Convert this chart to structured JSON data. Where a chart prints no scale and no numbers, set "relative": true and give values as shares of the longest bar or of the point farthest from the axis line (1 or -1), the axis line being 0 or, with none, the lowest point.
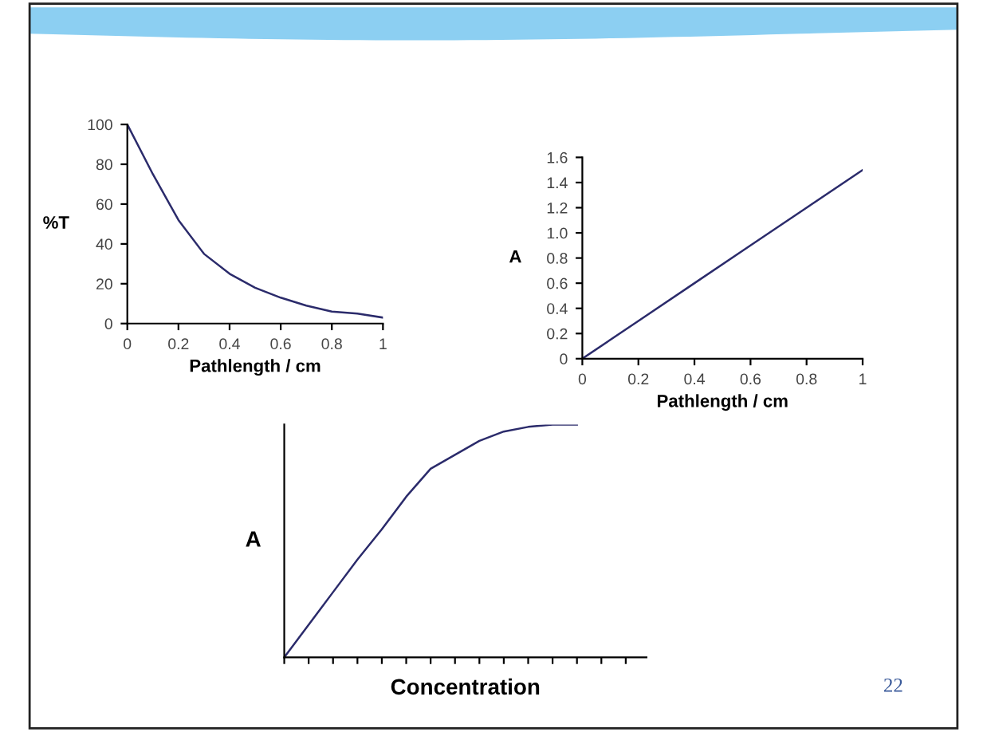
{
  "chart_data": [
    {
      "type": "line",
      "xlabel": "Pathlength / cm",
      "ylabel": "%T",
      "x": [
        0,
        0.1,
        0.2,
        0.3,
        0.4,
        0.5,
        0.6,
        0.7,
        0.8,
        0.9,
        1
      ],
      "series": [
        {
          "color": "#2b2b6b",
          "values": [
            100,
            75,
            52,
            35,
            25,
            18,
            13,
            9,
            6,
            5,
            3
          ]
        }
      ],
      "xlim": [
        0,
        1
      ],
      "xticks": [
        0,
        0.2,
        0.4,
        0.6,
        0.8,
        1
      ],
      "ylim": [
        0,
        100
      ],
      "yticks": [
        0,
        20,
        40,
        60,
        80,
        100
      ],
      "grid": false,
      "legend": false,
      "marker": "none",
      "line_style": "solid"
    },
    {
      "type": "line",
      "xlabel": "Pathlength / cm",
      "ylabel": "A",
      "x": [
        0,
        0.2,
        0.4,
        0.6,
        0.8,
        1
      ],
      "series": [
        {
          "color": "#2b2b6b",
          "values": [
            0,
            0.3,
            0.6,
            0.9,
            1.2,
            1.5
          ]
        }
      ],
      "xlim": [
        0,
        1
      ],
      "xticks": [
        0,
        0.2,
        0.4,
        0.6,
        0.8,
        1
      ],
      "ylim": [
        0,
        1.6
      ],
      "yticks": [
        0,
        0.2,
        0.4,
        0.6,
        0.8,
        {
          "value": 1.0,
          "label": "1.0"
        },
        1.2,
        1.4,
        1.6
      ],
      "grid": false,
      "legend": false,
      "marker": "none",
      "line_style": "solid"
    },
    {
      "type": "line",
      "xlabel": "Concentration",
      "ylabel": "A",
      "relative": true,
      "annotations": [
        "22"
      ],
      "categories": [
        null,
        null,
        null,
        null,
        null,
        null,
        null,
        null,
        null,
        null,
        null,
        null,
        null,
        null,
        null
      ],
      "series": [
        {
          "color": "#2b2b6b",
          "values": [
            0,
            0.14,
            0.28,
            0.42,
            0.55,
            0.69,
            0.81,
            0.87,
            0.93,
            0.97,
            0.99,
            1.0,
            1.0,
            null,
            null
          ]
        }
      ],
      "grid": false,
      "legend": false,
      "marker": "none",
      "line_style": "solid"
    }
  ]
}
